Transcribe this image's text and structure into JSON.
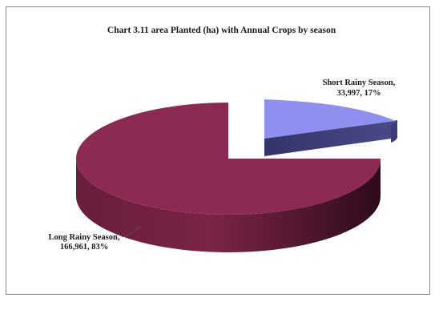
{
  "chart_data": {
    "type": "pie",
    "title": "Chart 3.11 area Planted (ha) with Annual Crops by season",
    "slices": [
      {
        "name": "Long Rainy Season",
        "value": 166961,
        "percent": 83,
        "label_line1": "Long Rainy Season,",
        "label_line2": "166,961, 83%",
        "color": "#8b2a52",
        "side_color": "#5c1733"
      },
      {
        "name": "Short Rainy Season",
        "value": 33997,
        "percent": 17,
        "label_line1": "Short Rainy Season,",
        "label_line2": "33,997, 17%",
        "color": "#8f8ff0",
        "side_color": "#3a3a70"
      }
    ],
    "style": "3d-exploded"
  }
}
